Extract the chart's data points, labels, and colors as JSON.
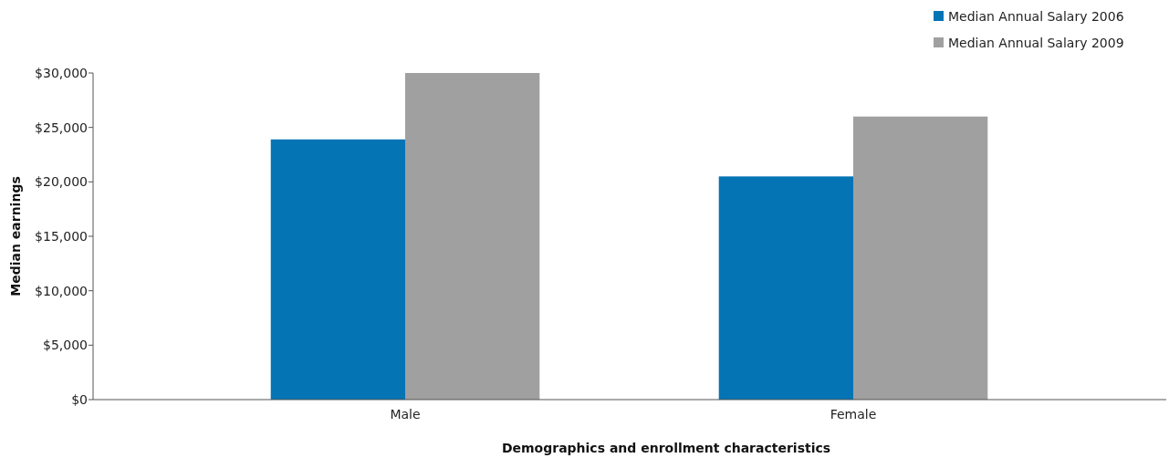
{
  "chart_data": {
    "type": "bar",
    "xlabel": "Demographics and enrollment characteristics",
    "ylabel": "Median earnings",
    "categories": [
      "Male",
      "Female"
    ],
    "series": [
      {
        "name": "Median Annual Salary 2006",
        "color": "#0474b4",
        "values": [
          23900,
          20500
        ]
      },
      {
        "name": "Median Annual Salary 2009",
        "color": "#a0a0a0",
        "values": [
          30000,
          26000
        ]
      }
    ],
    "ylim": [
      0,
      30000
    ],
    "yticks": [
      {
        "value": 0,
        "label": "$0"
      },
      {
        "value": 5000,
        "label": "$5,000"
      },
      {
        "value": 10000,
        "label": "$10,000"
      },
      {
        "value": 15000,
        "label": "$15,000"
      },
      {
        "value": 20000,
        "label": "$20,000"
      },
      {
        "value": 25000,
        "label": "$25,000"
      },
      {
        "value": 30000,
        "label": "$30,000"
      }
    ],
    "grid": false,
    "legend": "top right"
  }
}
